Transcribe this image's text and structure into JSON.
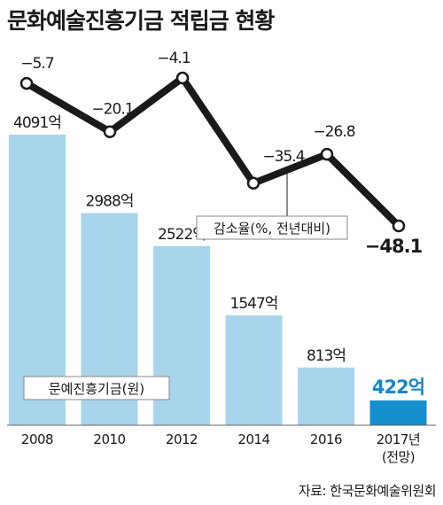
{
  "title": "문화예술진흥기금 적립금 현황",
  "source": "자료: 한국문화예술위원회",
  "colors": {
    "bar": "#a8d4ec",
    "bar_highlight": "#1590cf",
    "line": "#1a1a1a",
    "highlight_text": "#1a86c8",
    "baseline": "#666666"
  },
  "chart_data": [
    {
      "type": "bar",
      "title": "",
      "legend_label": "문예진흥기금(원)",
      "categories": [
        "2008",
        "2010",
        "2012",
        "2014",
        "2016",
        "2017년\n(전망)"
      ],
      "values": [
        4091,
        2988,
        2522,
        1547,
        813,
        422
      ],
      "value_labels": [
        "4091억",
        "2988억",
        "2522억",
        "1547억",
        "813억",
        "422억"
      ],
      "unit": "억",
      "highlight_index": 5
    },
    {
      "type": "line",
      "legend_label": "감소율(%, 전년대비)",
      "categories": [
        "2008",
        "2010",
        "2012",
        "2014",
        "2016",
        "2017년\n(전망)"
      ],
      "values": [
        -5.7,
        -20.1,
        -4.1,
        -35.4,
        -26.8,
        -48.1
      ],
      "value_labels": [
        "−5.7",
        "−20.1",
        "−4.1",
        "−35.4",
        "−26.8",
        "−48.1"
      ]
    }
  ]
}
